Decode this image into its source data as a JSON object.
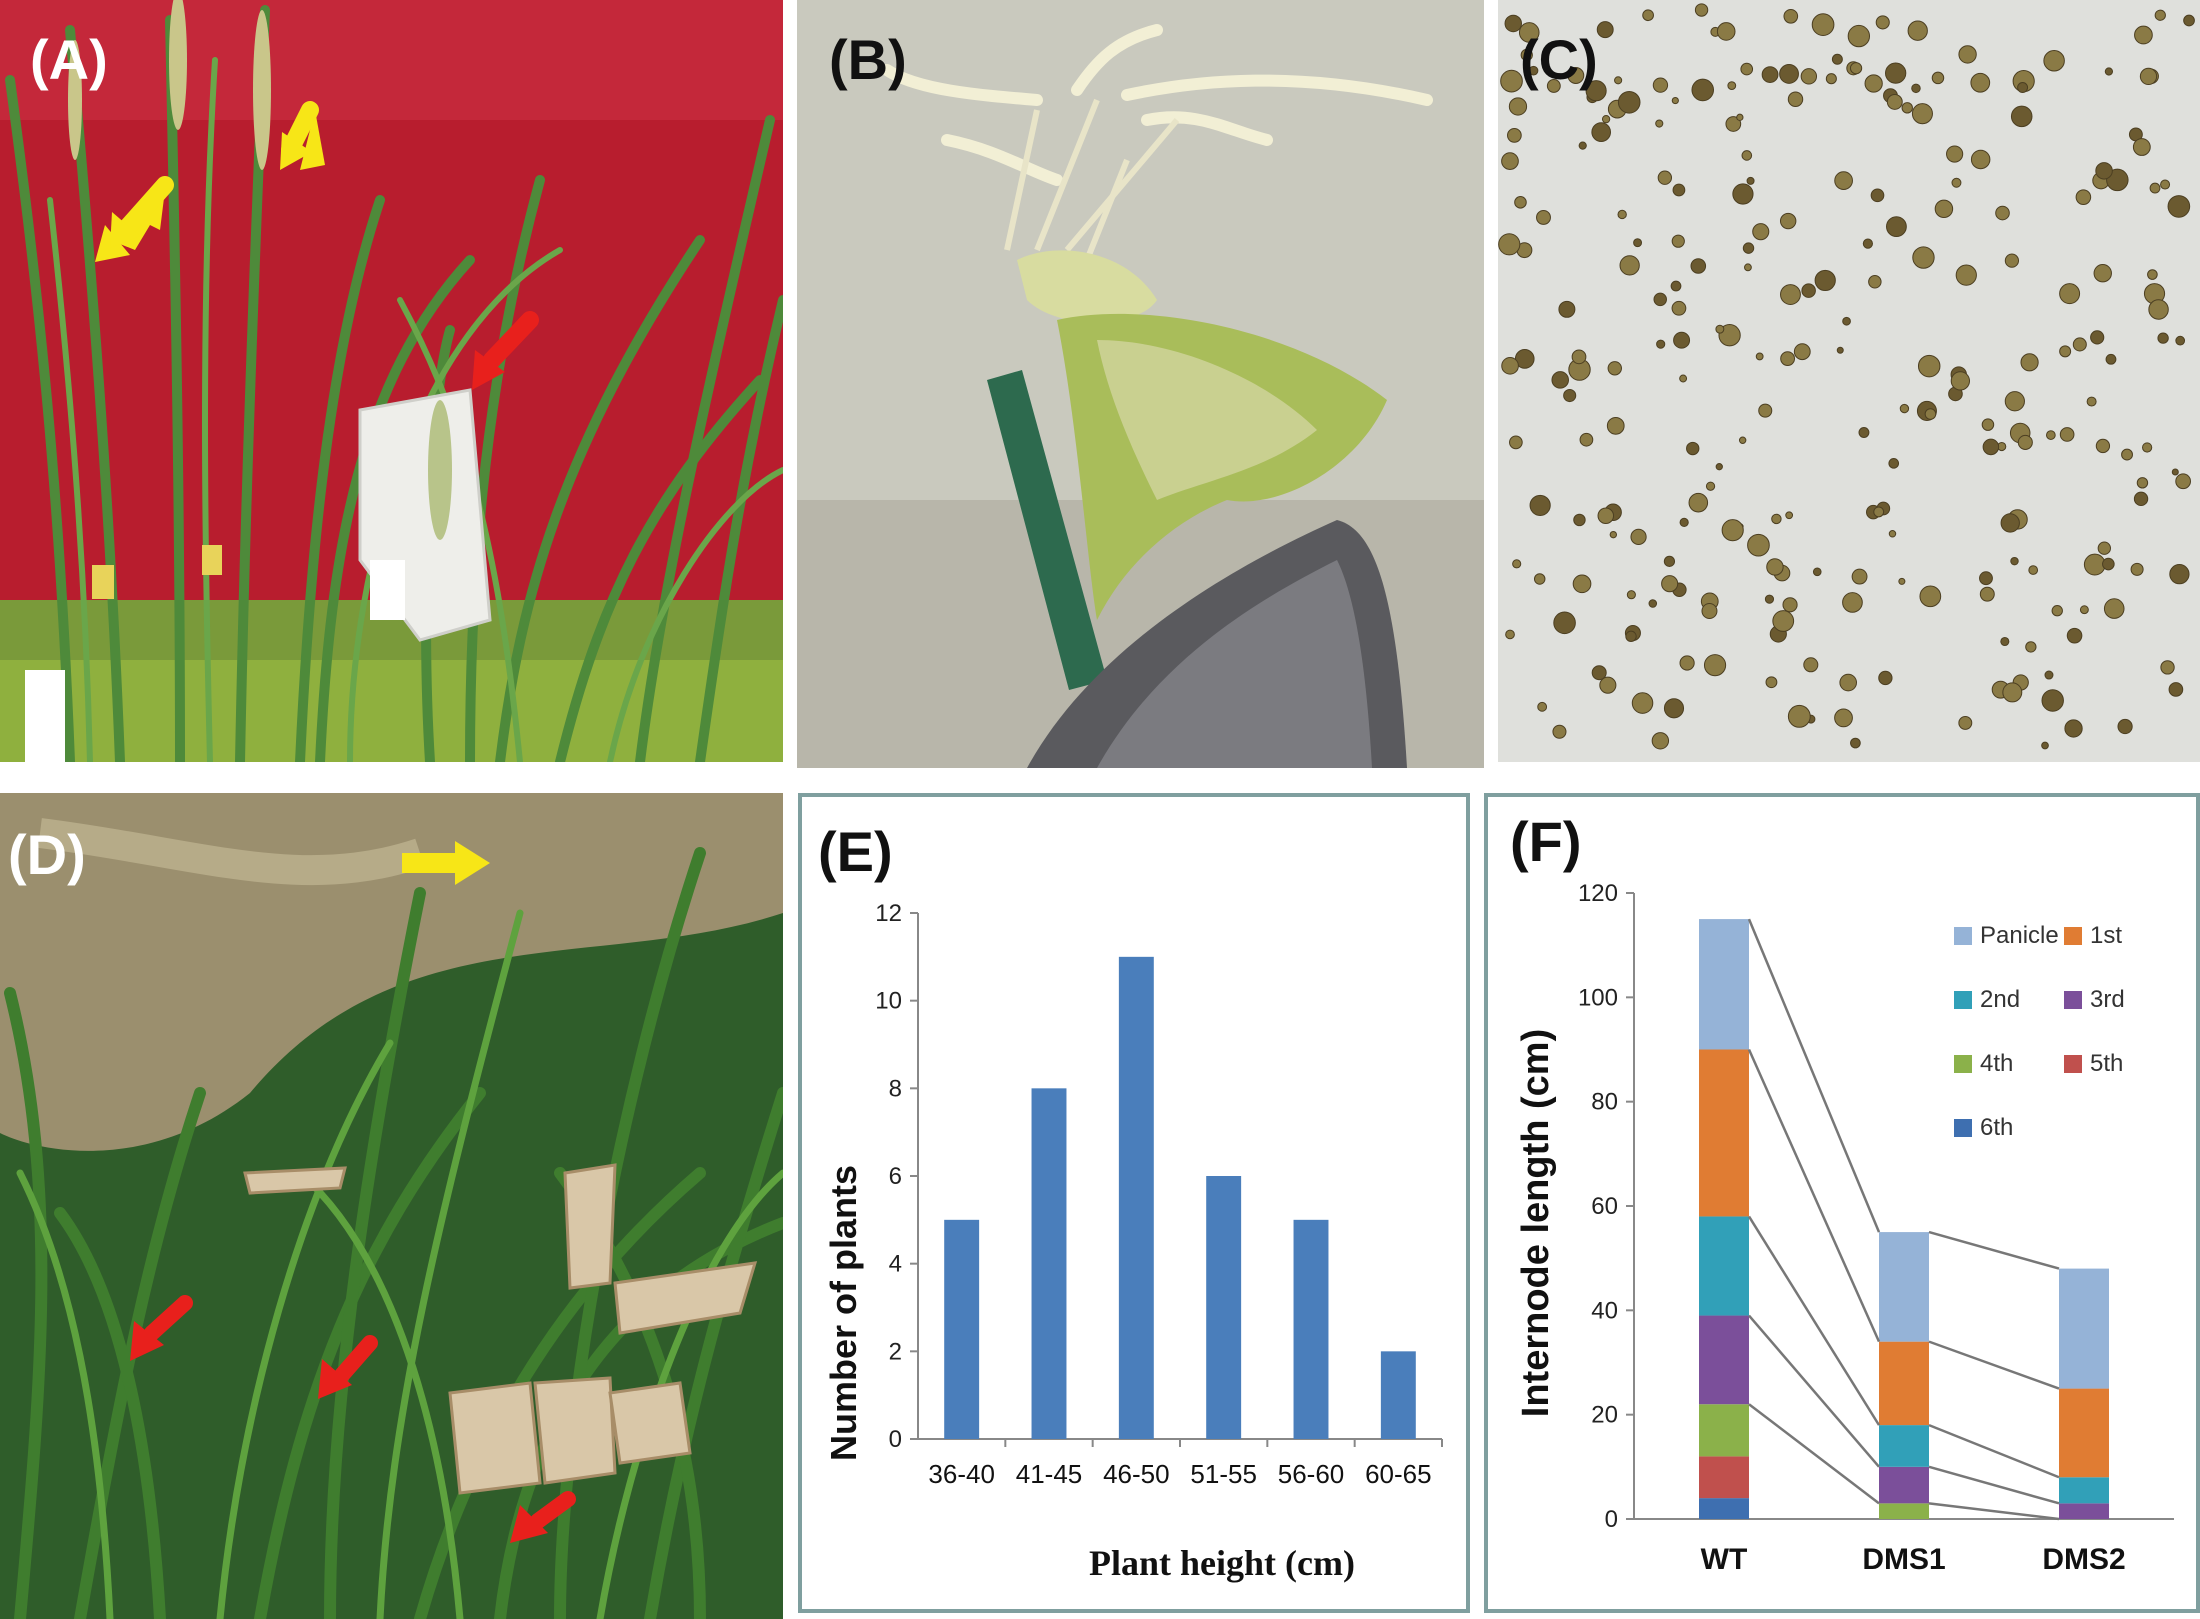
{
  "figure": {
    "panels": {
      "a": {
        "label": "(A)",
        "description_icons": [
          "rice-plants-icon",
          "paper-bag-icon",
          "yellow-arrow-icon",
          "red-arrow-icon"
        ]
      },
      "b": {
        "label": "(B)",
        "description_icons": [
          "rice-flower-icon",
          "forceps-icon"
        ]
      },
      "c": {
        "label": "(C)",
        "description_icons": [
          "pollen-grains-icon"
        ]
      },
      "d": {
        "label": "(D)",
        "description_icons": [
          "field-plants-icon",
          "yellow-arrow-icon",
          "red-arrow-icon",
          "paper-bag-icon"
        ]
      }
    }
  },
  "colors": {
    "bar": "#4a7ebb",
    "panel_border": "#7f9f9f",
    "yellow_arrow": "#f7e617",
    "red_arrow": "#e8201c",
    "red_backdrop": "#b81d2e",
    "stack_colors": {
      "Panicle": "#95b3d7",
      "1st": "#e07c33",
      "2nd": "#31a0b8",
      "3rd": "#7b4f9a",
      "4th": "#8bb14a",
      "5th": "#c0504d",
      "6th": "#3e6fb0"
    }
  },
  "chart_data": [
    {
      "panel_label": "(E)",
      "type": "bar",
      "categories": [
        "36-40",
        "41-45",
        "46-50",
        "51-55",
        "56-60",
        "60-65"
      ],
      "values": [
        5,
        8,
        11,
        6,
        5,
        2
      ],
      "xlabel": "Plant height (cm)",
      "ylabel": "Number of plants",
      "ylim": [
        0,
        12
      ],
      "yticks": [
        "0",
        "2",
        "4",
        "6",
        "8",
        "10",
        "12"
      ],
      "grid": false,
      "legend": "none"
    },
    {
      "panel_label": "(F)",
      "type": "bar",
      "stacked": true,
      "categories": [
        "WT",
        "DMS1",
        "DMS2"
      ],
      "series": [
        {
          "name": "6th",
          "values": [
            4,
            0,
            0
          ]
        },
        {
          "name": "5th",
          "values": [
            8,
            0,
            0
          ]
        },
        {
          "name": "4th",
          "values": [
            10,
            3,
            0
          ]
        },
        {
          "name": "3rd",
          "values": [
            17,
            7,
            3
          ]
        },
        {
          "name": "2nd",
          "values": [
            19,
            8,
            5
          ]
        },
        {
          "name": "1st",
          "values": [
            32,
            16,
            17
          ]
        },
        {
          "name": "Panicle",
          "values": [
            25,
            21,
            23
          ]
        }
      ],
      "legend_order": [
        "Panicle",
        "1st",
        "2nd",
        "3rd",
        "4th",
        "5th",
        "6th"
      ],
      "ylabel": "Internode length (cm)",
      "ylim": [
        0,
        120
      ],
      "yticks": [
        "0",
        "20",
        "40",
        "60",
        "80",
        "100",
        "120"
      ],
      "grid": false,
      "legend": "top-right",
      "connector_lines": true
    }
  ]
}
